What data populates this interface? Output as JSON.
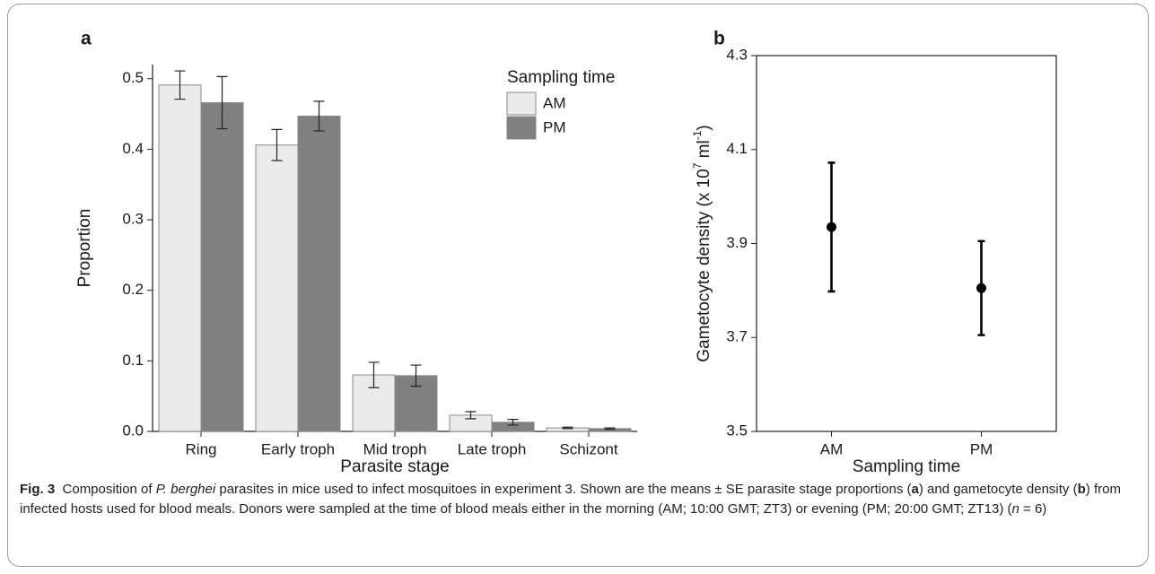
{
  "chart_data": [
    {
      "type": "bar",
      "panel": "a",
      "x_label": "Parasite stage",
      "y_label": "Proportion",
      "categories": [
        "Ring",
        "Early troph",
        "Mid troph",
        "Late troph",
        "Schizont"
      ],
      "legend_title": "Sampling time",
      "legend": "upper right",
      "series": [
        {
          "name": "AM",
          "color": "#ebebeb",
          "values": [
            0.491,
            0.406,
            0.08,
            0.023,
            0.005
          ],
          "errors": [
            0.02,
            0.022,
            0.018,
            0.005,
            0.001
          ]
        },
        {
          "name": "PM",
          "color": "#808080",
          "values": [
            0.466,
            0.447,
            0.079,
            0.013,
            0.004
          ],
          "errors": [
            0.037,
            0.021,
            0.015,
            0.004,
            0.001
          ]
        }
      ],
      "ylim": [
        0,
        0.52
      ],
      "yticks": [
        {
          "value": 0,
          "label": "0.0"
        },
        0.1,
        0.2,
        0.3,
        0.4,
        0.5
      ]
    },
    {
      "type": "scatter",
      "panel": "b",
      "x_label": "Sampling time",
      "y_label": [
        "Gametocyte density (x 10",
        "7",
        " ml",
        "-1",
        ")"
      ],
      "categories": [
        "AM",
        "PM"
      ],
      "series": [
        {
          "color": "#000000",
          "values": [
            3.935,
            3.805
          ],
          "errors": [
            0.137,
            0.1
          ]
        }
      ],
      "ylim": [
        3.5,
        4.3
      ],
      "yticks": [
        3.5,
        3.7,
        3.9,
        4.1,
        4.3
      ]
    }
  ],
  "caption": {
    "label": "Fig. 3",
    "parts": [
      "Composition of ",
      "P. berghei",
      " parasites in mice used to infect mosquitoes in experiment 3. Shown are the means ± SE parasite stage proportions (",
      "a",
      ") and gametocyte density (",
      "b",
      ") from infected hosts used for blood meals. Donors were sampled at the time of blood meals either in the morning (AM; 10:00 GMT; ZT3) or evening (PM; 20:00 GMT; ZT13) (",
      "n",
      " = 6)"
    ]
  }
}
